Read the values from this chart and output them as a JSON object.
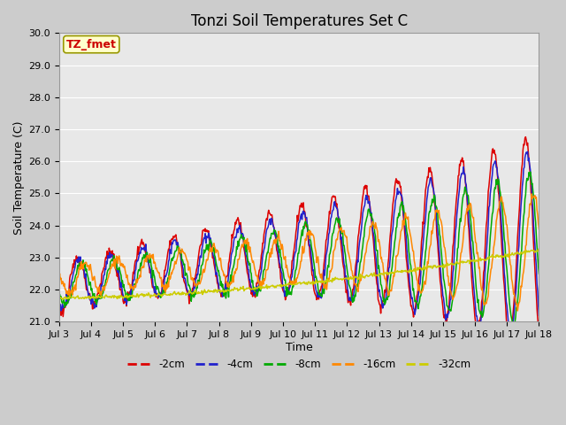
{
  "title": "Tonzi Soil Temperatures Set C",
  "xlabel": "Time",
  "ylabel": "Soil Temperature (C)",
  "ylim": [
    21.0,
    30.0
  ],
  "yticks": [
    21.0,
    22.0,
    23.0,
    24.0,
    25.0,
    26.0,
    27.0,
    28.0,
    29.0,
    30.0
  ],
  "xtick_labels": [
    "Jul 3",
    "Jul 4",
    "Jul 5",
    "Jul 6",
    "Jul 7",
    "Jul 8",
    "Jul 9",
    "Jul 10",
    "Jul 11",
    "Jul 12",
    "Jul 13",
    "Jul 14",
    "Jul 15",
    "Jul 16",
    "Jul 17",
    "Jul 18"
  ],
  "series_colors": [
    "#dd0000",
    "#2222cc",
    "#00aa00",
    "#ff8800",
    "#cccc00"
  ],
  "series_labels": [
    "-2cm",
    "-4cm",
    "-8cm",
    "-16cm",
    "-32cm"
  ],
  "annotation_text": "TZ_fmet",
  "annotation_color": "#cc0000",
  "annotation_bg": "#ffffcc",
  "annotation_border": "#999900",
  "bg_color": "#e8e8e8",
  "grid_color": "#ffffff",
  "title_fontsize": 12,
  "axis_fontsize": 9,
  "tick_fontsize": 8
}
